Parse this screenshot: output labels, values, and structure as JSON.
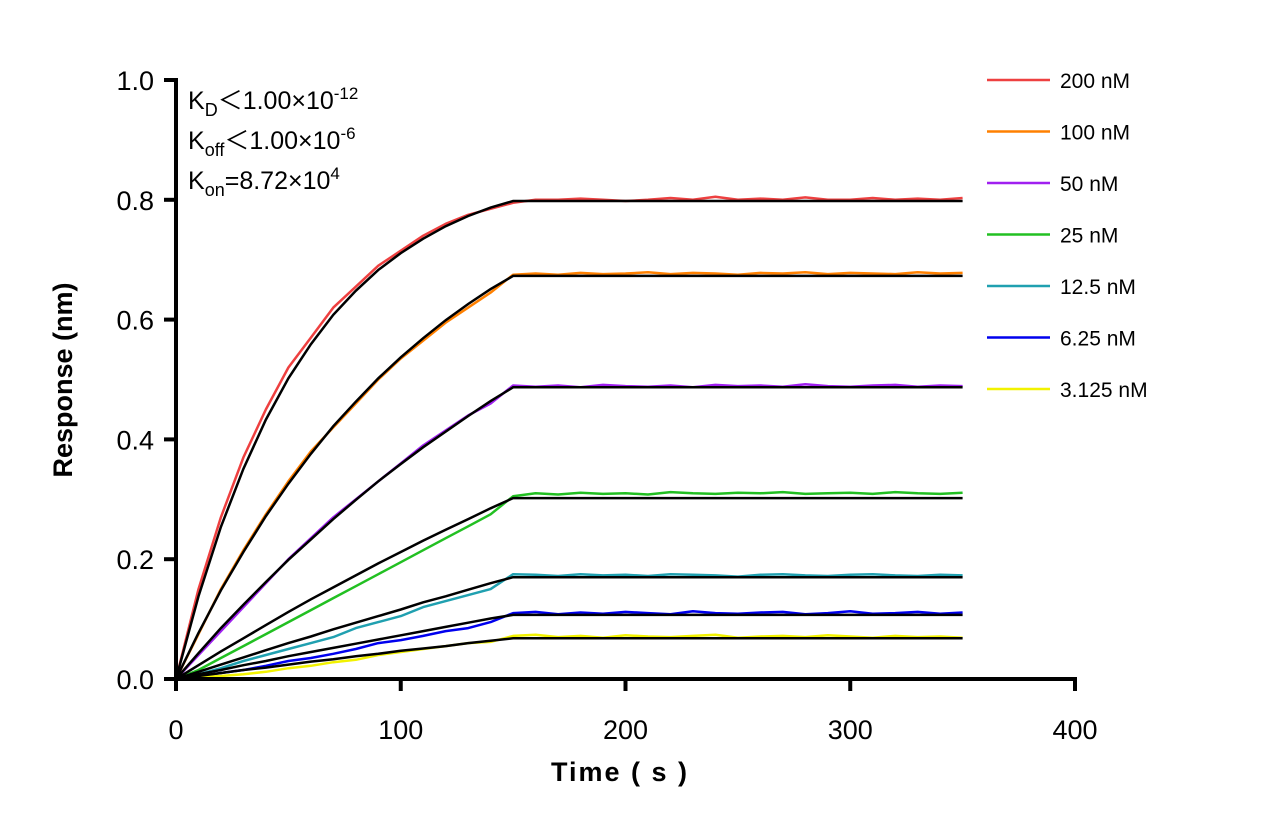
{
  "chart_data": {
    "type": "line",
    "title": "",
    "xlabel": "Time ( s )",
    "ylabel": "Response (nm)",
    "xlim": [
      0,
      400
    ],
    "ylim": [
      0,
      1.0
    ],
    "xticks": [
      "0",
      "100",
      "200",
      "300",
      "400"
    ],
    "yticks": [
      "0.0",
      "0.2",
      "0.4",
      "0.6",
      "0.8",
      "1.0"
    ],
    "grid": false,
    "legend_position": "top-right",
    "annotations": [
      {
        "main": "K",
        "sub": "D",
        "rest": "＜1.00×10",
        "sup": "-12"
      },
      {
        "main": "K",
        "sub": "off",
        "rest": "＜1.00×10",
        "sup": "-6"
      },
      {
        "main": "K",
        "sub": "on",
        "rest": "=8.72×10",
        "sup": "4"
      }
    ],
    "fit_color": "#000000",
    "x": [
      0,
      10,
      20,
      30,
      40,
      50,
      60,
      70,
      80,
      90,
      100,
      110,
      120,
      130,
      140,
      150,
      160,
      170,
      180,
      190,
      200,
      210,
      220,
      230,
      240,
      250,
      260,
      270,
      280,
      290,
      300,
      310,
      320,
      330,
      340,
      350
    ],
    "series": [
      {
        "name": "200 nM",
        "color": "#ee4040",
        "measured": [
          0,
          0.15,
          0.27,
          0.37,
          0.45,
          0.52,
          0.57,
          0.62,
          0.655,
          0.69,
          0.715,
          0.74,
          0.76,
          0.775,
          0.785,
          0.795,
          0.8,
          0.8,
          0.802,
          0.8,
          0.798,
          0.8,
          0.803,
          0.8,
          0.805,
          0.8,
          0.802,
          0.8,
          0.804,
          0.8,
          0.8,
          0.803,
          0.8,
          0.802,
          0.8,
          0.803
        ],
        "fit": [
          0,
          0.138,
          0.254,
          0.351,
          0.433,
          0.502,
          0.559,
          0.608,
          0.648,
          0.683,
          0.711,
          0.735,
          0.756,
          0.773,
          0.787,
          0.798,
          0.798,
          0.798,
          0.798,
          0.798,
          0.798,
          0.798,
          0.798,
          0.798,
          0.798,
          0.798,
          0.798,
          0.798,
          0.798,
          0.798,
          0.798,
          0.798,
          0.798,
          0.798,
          0.798,
          0.798
        ]
      },
      {
        "name": "100 nM",
        "color": "#ff8000",
        "measured": [
          0,
          0.075,
          0.15,
          0.215,
          0.275,
          0.33,
          0.38,
          0.42,
          0.46,
          0.5,
          0.535,
          0.565,
          0.595,
          0.62,
          0.645,
          0.675,
          0.677,
          0.675,
          0.678,
          0.676,
          0.677,
          0.679,
          0.676,
          0.678,
          0.677,
          0.675,
          0.678,
          0.677,
          0.679,
          0.676,
          0.678,
          0.677,
          0.676,
          0.679,
          0.677,
          0.678
        ],
        "fit": [
          0,
          0.077,
          0.148,
          0.212,
          0.272,
          0.326,
          0.376,
          0.422,
          0.463,
          0.502,
          0.537,
          0.569,
          0.599,
          0.626,
          0.651,
          0.673,
          0.673,
          0.673,
          0.673,
          0.673,
          0.673,
          0.673,
          0.673,
          0.673,
          0.673,
          0.673,
          0.673,
          0.673,
          0.673,
          0.673,
          0.673,
          0.673,
          0.673,
          0.673,
          0.673,
          0.673
        ]
      },
      {
        "name": "50 nM",
        "color": "#a020f0",
        "measured": [
          0,
          0.04,
          0.08,
          0.12,
          0.16,
          0.2,
          0.235,
          0.27,
          0.3,
          0.33,
          0.36,
          0.39,
          0.415,
          0.44,
          0.46,
          0.49,
          0.488,
          0.49,
          0.487,
          0.491,
          0.489,
          0.488,
          0.49,
          0.487,
          0.491,
          0.489,
          0.49,
          0.488,
          0.492,
          0.489,
          0.488,
          0.49,
          0.491,
          0.488,
          0.49,
          0.489
        ],
        "fit": [
          0,
          0.043,
          0.085,
          0.124,
          0.162,
          0.199,
          0.233,
          0.267,
          0.299,
          0.33,
          0.359,
          0.387,
          0.413,
          0.439,
          0.464,
          0.487,
          0.487,
          0.487,
          0.487,
          0.487,
          0.487,
          0.487,
          0.487,
          0.487,
          0.487,
          0.487,
          0.487,
          0.487,
          0.487,
          0.487,
          0.487,
          0.487,
          0.487,
          0.487,
          0.487,
          0.487
        ]
      },
      {
        "name": "25 nM",
        "color": "#22c022",
        "measured": [
          0,
          0.015,
          0.035,
          0.055,
          0.075,
          0.095,
          0.115,
          0.135,
          0.155,
          0.175,
          0.195,
          0.215,
          0.235,
          0.255,
          0.275,
          0.305,
          0.31,
          0.308,
          0.311,
          0.309,
          0.31,
          0.308,
          0.312,
          0.31,
          0.309,
          0.311,
          0.31,
          0.312,
          0.309,
          0.31,
          0.311,
          0.309,
          0.312,
          0.31,
          0.309,
          0.311
        ],
        "fit": [
          0,
          0.023,
          0.046,
          0.068,
          0.09,
          0.112,
          0.133,
          0.153,
          0.173,
          0.193,
          0.212,
          0.231,
          0.249,
          0.267,
          0.285,
          0.302,
          0.302,
          0.302,
          0.302,
          0.302,
          0.302,
          0.302,
          0.302,
          0.302,
          0.302,
          0.302,
          0.302,
          0.302,
          0.302,
          0.302,
          0.302,
          0.302,
          0.302,
          0.302,
          0.302,
          0.302
        ]
      },
      {
        "name": "12.5 nM",
        "color": "#20a0b0",
        "measured": [
          0,
          0.008,
          0.018,
          0.03,
          0.04,
          0.05,
          0.06,
          0.07,
          0.085,
          0.095,
          0.105,
          0.12,
          0.13,
          0.14,
          0.15,
          0.175,
          0.174,
          0.172,
          0.175,
          0.173,
          0.174,
          0.172,
          0.175,
          0.174,
          0.173,
          0.171,
          0.174,
          0.175,
          0.173,
          0.172,
          0.174,
          0.175,
          0.173,
          0.172,
          0.174,
          0.173
        ],
        "fit": [
          0,
          0.012,
          0.024,
          0.036,
          0.048,
          0.06,
          0.071,
          0.083,
          0.094,
          0.105,
          0.116,
          0.128,
          0.138,
          0.149,
          0.16,
          0.17,
          0.17,
          0.17,
          0.17,
          0.17,
          0.17,
          0.17,
          0.17,
          0.17,
          0.17,
          0.17,
          0.17,
          0.17,
          0.17,
          0.17,
          0.17,
          0.17,
          0.17,
          0.17,
          0.17,
          0.17
        ]
      },
      {
        "name": "6.25 nM",
        "color": "#0000ee",
        "measured": [
          0,
          0.005,
          0.01,
          0.015,
          0.022,
          0.03,
          0.035,
          0.042,
          0.05,
          0.06,
          0.065,
          0.072,
          0.08,
          0.085,
          0.095,
          0.11,
          0.112,
          0.108,
          0.111,
          0.109,
          0.112,
          0.11,
          0.108,
          0.113,
          0.11,
          0.109,
          0.111,
          0.112,
          0.108,
          0.11,
          0.113,
          0.109,
          0.11,
          0.112,
          0.109,
          0.111
        ],
        "fit": [
          0,
          0.008,
          0.015,
          0.023,
          0.03,
          0.038,
          0.045,
          0.052,
          0.059,
          0.066,
          0.073,
          0.08,
          0.087,
          0.094,
          0.101,
          0.107,
          0.107,
          0.107,
          0.107,
          0.107,
          0.107,
          0.107,
          0.107,
          0.107,
          0.107,
          0.107,
          0.107,
          0.107,
          0.107,
          0.107,
          0.107,
          0.107,
          0.107,
          0.107,
          0.107,
          0.107
        ]
      },
      {
        "name": "3.125 nM",
        "color": "#f2f200",
        "measured": [
          0,
          0.003,
          0.005,
          0.008,
          0.012,
          0.018,
          0.022,
          0.028,
          0.032,
          0.04,
          0.045,
          0.05,
          0.055,
          0.06,
          0.062,
          0.072,
          0.074,
          0.07,
          0.072,
          0.069,
          0.073,
          0.071,
          0.07,
          0.072,
          0.074,
          0.069,
          0.071,
          0.072,
          0.07,
          0.073,
          0.071,
          0.069,
          0.072,
          0.07,
          0.071,
          0.069
        ],
        "fit": [
          0,
          0.005,
          0.01,
          0.015,
          0.019,
          0.024,
          0.029,
          0.033,
          0.038,
          0.042,
          0.047,
          0.051,
          0.055,
          0.06,
          0.064,
          0.068,
          0.068,
          0.068,
          0.068,
          0.068,
          0.068,
          0.068,
          0.068,
          0.068,
          0.068,
          0.068,
          0.068,
          0.068,
          0.068,
          0.068,
          0.068,
          0.068,
          0.068,
          0.068,
          0.068,
          0.068
        ]
      }
    ]
  }
}
